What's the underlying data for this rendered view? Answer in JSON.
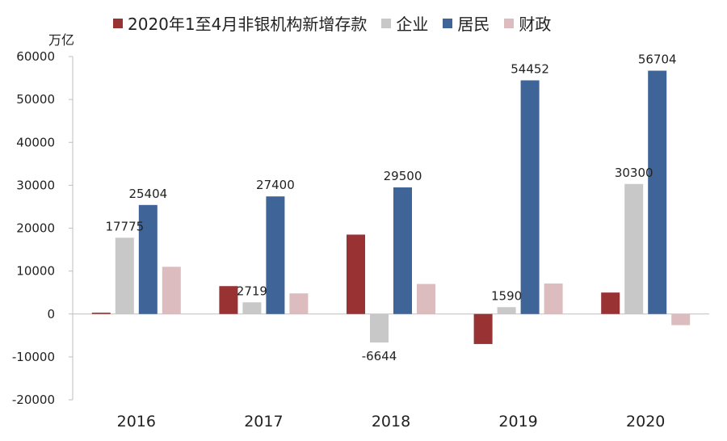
{
  "chart_data": {
    "type": "bar",
    "unit_label": "万亿",
    "categories": [
      "2016",
      "2017",
      "2018",
      "2019",
      "2020"
    ],
    "series": [
      {
        "name": "2020年1至4月非银机构新增存款",
        "color": "#993333",
        "values": [
          300,
          6500,
          18500,
          -7000,
          5000
        ]
      },
      {
        "name": "企业",
        "color": "#c8c8c8",
        "values": [
          17775,
          2719,
          -6644,
          1590,
          30300
        ]
      },
      {
        "name": "居民",
        "color": "#3f6497",
        "values": [
          25404,
          27400,
          29500,
          54452,
          56704
        ]
      },
      {
        "name": "财政",
        "color": "#dcbcbe",
        "values": [
          11000,
          4800,
          7000,
          7100,
          -2600
        ]
      }
    ],
    "data_labels": [
      {
        "series": 1,
        "category": 0,
        "text": "17775"
      },
      {
        "series": 2,
        "category": 0,
        "text": "25404"
      },
      {
        "series": 1,
        "category": 1,
        "text": "2719"
      },
      {
        "series": 2,
        "category": 1,
        "text": "27400"
      },
      {
        "series": 1,
        "category": 2,
        "text": "-6644"
      },
      {
        "series": 2,
        "category": 2,
        "text": "29500"
      },
      {
        "series": 1,
        "category": 3,
        "text": "1590"
      },
      {
        "series": 2,
        "category": 3,
        "text": "54452"
      },
      {
        "series": 1,
        "category": 4,
        "text": "30300"
      },
      {
        "series": 2,
        "category": 4,
        "text": "56704"
      }
    ],
    "ylim": [
      -20000,
      60000
    ],
    "yticks": [
      -20000,
      -10000,
      0,
      10000,
      20000,
      30000,
      40000,
      50000,
      60000
    ],
    "legend_position": "top",
    "grid": false
  }
}
